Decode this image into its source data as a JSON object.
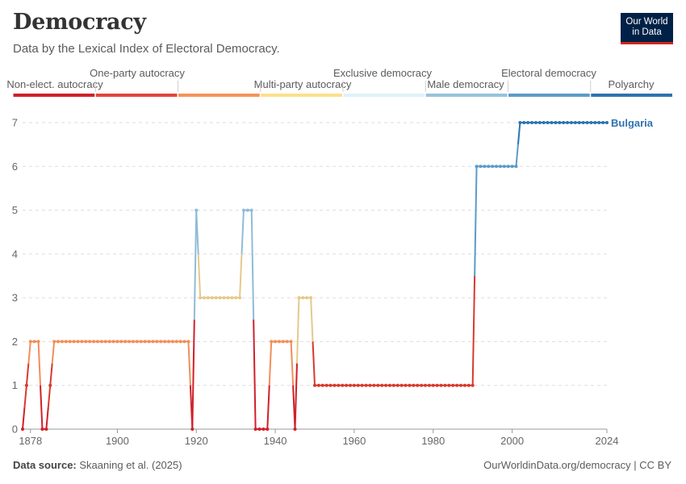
{
  "header": {
    "title": "Democracy",
    "subtitle": "Data by the Lexical Index of Electoral Democracy.",
    "logo_line1": "Our World",
    "logo_line2": "in Data"
  },
  "footer": {
    "source_label": "Data source:",
    "source_text": "Skaaning et al. (2025)",
    "url": "OurWorldinData.org/democracy | CC BY"
  },
  "chart_data": {
    "type": "line",
    "title": "Democracy",
    "subtitle": "Data by the Lexical Index of Electoral Democracy.",
    "xlabel": "",
    "ylabel": "",
    "xlim": [
      1876,
      2024
    ],
    "ylim": [
      0,
      7
    ],
    "yticks": [
      0,
      1,
      2,
      3,
      4,
      5,
      6,
      7
    ],
    "xticks": [
      1878,
      1900,
      1920,
      1940,
      1960,
      1980,
      2000,
      2024
    ],
    "grid": "horizontal-dashed",
    "legend": {
      "placement": "top",
      "categories": [
        {
          "label": "Non-elect. autocracy",
          "color": "#d0202a"
        },
        {
          "label": "One-party autocracy",
          "color": "#e2463b"
        },
        {
          "label": "Multi-party autocracy",
          "color": "#f4935a"
        },
        {
          "label": "Exclusive democracy",
          "color": "#fce08a"
        },
        {
          "label": "Male democracy",
          "color": "#e1f0f9"
        },
        {
          "label": "Electoral democracy",
          "color": "#96c3dc"
        },
        {
          "label": "Polyarchy",
          "color": "#5b9bc8"
        },
        {
          "label": "",
          "color": "#2e73b0"
        }
      ]
    },
    "series": [
      {
        "name": "Bulgaria",
        "points": [
          [
            1876,
            0
          ],
          [
            1877,
            1
          ],
          [
            1878,
            2
          ],
          [
            1879,
            2
          ],
          [
            1880,
            2
          ],
          [
            1881,
            0
          ],
          [
            1882,
            0
          ],
          [
            1883,
            1
          ],
          [
            1884,
            2
          ],
          [
            1885,
            2
          ],
          [
            1886,
            2
          ],
          [
            1887,
            2
          ],
          [
            1888,
            2
          ],
          [
            1889,
            2
          ],
          [
            1890,
            2
          ],
          [
            1891,
            2
          ],
          [
            1892,
            2
          ],
          [
            1893,
            2
          ],
          [
            1894,
            2
          ],
          [
            1895,
            2
          ],
          [
            1896,
            2
          ],
          [
            1897,
            2
          ],
          [
            1898,
            2
          ],
          [
            1899,
            2
          ],
          [
            1900,
            2
          ],
          [
            1901,
            2
          ],
          [
            1902,
            2
          ],
          [
            1903,
            2
          ],
          [
            1904,
            2
          ],
          [
            1905,
            2
          ],
          [
            1906,
            2
          ],
          [
            1907,
            2
          ],
          [
            1908,
            2
          ],
          [
            1909,
            2
          ],
          [
            1910,
            2
          ],
          [
            1911,
            2
          ],
          [
            1912,
            2
          ],
          [
            1913,
            2
          ],
          [
            1914,
            2
          ],
          [
            1915,
            2
          ],
          [
            1916,
            2
          ],
          [
            1917,
            2
          ],
          [
            1918,
            2
          ],
          [
            1919,
            0
          ],
          [
            1920,
            5
          ],
          [
            1921,
            3
          ],
          [
            1922,
            3
          ],
          [
            1923,
            3
          ],
          [
            1924,
            3
          ],
          [
            1925,
            3
          ],
          [
            1926,
            3
          ],
          [
            1927,
            3
          ],
          [
            1928,
            3
          ],
          [
            1929,
            3
          ],
          [
            1930,
            3
          ],
          [
            1931,
            3
          ],
          [
            1932,
            5
          ],
          [
            1933,
            5
          ],
          [
            1934,
            5
          ],
          [
            1935,
            0
          ],
          [
            1936,
            0
          ],
          [
            1937,
            0
          ],
          [
            1938,
            0
          ],
          [
            1939,
            2
          ],
          [
            1940,
            2
          ],
          [
            1941,
            2
          ],
          [
            1942,
            2
          ],
          [
            1943,
            2
          ],
          [
            1944,
            2
          ],
          [
            1945,
            0
          ],
          [
            1946,
            3
          ],
          [
            1947,
            3
          ],
          [
            1948,
            3
          ],
          [
            1949,
            3
          ],
          [
            1950,
            1
          ],
          [
            1951,
            1
          ],
          [
            1952,
            1
          ],
          [
            1953,
            1
          ],
          [
            1954,
            1
          ],
          [
            1955,
            1
          ],
          [
            1956,
            1
          ],
          [
            1957,
            1
          ],
          [
            1958,
            1
          ],
          [
            1959,
            1
          ],
          [
            1960,
            1
          ],
          [
            1961,
            1
          ],
          [
            1962,
            1
          ],
          [
            1963,
            1
          ],
          [
            1964,
            1
          ],
          [
            1965,
            1
          ],
          [
            1966,
            1
          ],
          [
            1967,
            1
          ],
          [
            1968,
            1
          ],
          [
            1969,
            1
          ],
          [
            1970,
            1
          ],
          [
            1971,
            1
          ],
          [
            1972,
            1
          ],
          [
            1973,
            1
          ],
          [
            1974,
            1
          ],
          [
            1975,
            1
          ],
          [
            1976,
            1
          ],
          [
            1977,
            1
          ],
          [
            1978,
            1
          ],
          [
            1979,
            1
          ],
          [
            1980,
            1
          ],
          [
            1981,
            1
          ],
          [
            1982,
            1
          ],
          [
            1983,
            1
          ],
          [
            1984,
            1
          ],
          [
            1985,
            1
          ],
          [
            1986,
            1
          ],
          [
            1987,
            1
          ],
          [
            1988,
            1
          ],
          [
            1989,
            1
          ],
          [
            1990,
            1
          ],
          [
            1991,
            6
          ],
          [
            1992,
            6
          ],
          [
            1993,
            6
          ],
          [
            1994,
            6
          ],
          [
            1995,
            6
          ],
          [
            1996,
            6
          ],
          [
            1997,
            6
          ],
          [
            1998,
            6
          ],
          [
            1999,
            6
          ],
          [
            2000,
            6
          ],
          [
            2001,
            6
          ],
          [
            2002,
            7
          ],
          [
            2003,
            7
          ],
          [
            2004,
            7
          ],
          [
            2005,
            7
          ],
          [
            2006,
            7
          ],
          [
            2007,
            7
          ],
          [
            2008,
            7
          ],
          [
            2009,
            7
          ],
          [
            2010,
            7
          ],
          [
            2011,
            7
          ],
          [
            2012,
            7
          ],
          [
            2013,
            7
          ],
          [
            2014,
            7
          ],
          [
            2015,
            7
          ],
          [
            2016,
            7
          ],
          [
            2017,
            7
          ],
          [
            2018,
            7
          ],
          [
            2019,
            7
          ],
          [
            2020,
            7
          ],
          [
            2021,
            7
          ],
          [
            2022,
            7
          ],
          [
            2023,
            7
          ],
          [
            2024,
            7
          ]
        ]
      }
    ]
  }
}
